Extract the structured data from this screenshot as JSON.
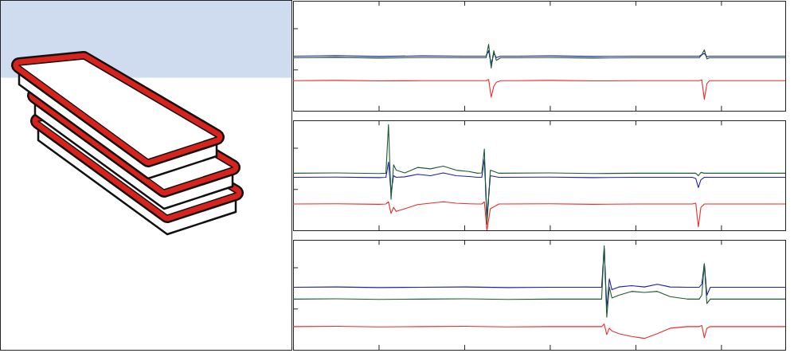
{
  "chart_data": [
    {
      "type": "line",
      "tick_labels": false,
      "grid": false,
      "xlim": [
        0,
        5.75
      ],
      "xticks": [
        1,
        2,
        3,
        4,
        5
      ],
      "ylim": [
        0,
        4
      ],
      "yticks": [
        1.5,
        3
      ],
      "x": [
        0,
        0.5,
        1,
        1.5,
        2,
        2.25,
        2.28,
        2.31,
        2.34,
        2.37,
        2.42,
        2.6,
        3,
        3.5,
        4,
        4.5,
        4.74,
        4.77,
        4.8,
        4.83,
        4.86,
        5.2,
        5.75
      ],
      "series": [
        {
          "color": "#1f1fa8",
          "values": [
            2.0,
            2.02,
            1.99,
            2.01,
            2.0,
            2.0,
            2.2,
            1.7,
            2.1,
            1.95,
            2.0,
            2.0,
            2.01,
            1.99,
            2.0,
            2.0,
            2.0,
            2.05,
            2.1,
            1.98,
            2.0,
            2.0,
            2.0
          ]
        },
        {
          "color": "#1e5a32",
          "values": [
            1.94,
            1.96,
            1.93,
            1.95,
            1.94,
            1.94,
            2.43,
            1.57,
            2.2,
            1.85,
            1.94,
            1.94,
            1.95,
            1.93,
            1.94,
            1.94,
            1.94,
            2.05,
            2.23,
            1.9,
            1.94,
            1.94,
            1.94
          ]
        },
        {
          "color": "#ee2a2a",
          "values": [
            1.11,
            1.12,
            1.1,
            1.11,
            1.11,
            1.11,
            1.15,
            0.51,
            0.9,
            1.05,
            1.11,
            1.11,
            1.12,
            1.1,
            1.11,
            1.11,
            1.11,
            1.14,
            0.43,
            1.0,
            1.11,
            1.11,
            1.11
          ]
        }
      ]
    },
    {
      "type": "line",
      "tick_labels": false,
      "grid": false,
      "xlim": [
        0,
        5.75
      ],
      "xticks": [
        1,
        2,
        3,
        4,
        5
      ],
      "ylim": [
        0,
        4
      ],
      "yticks": [
        1.5,
        3
      ],
      "x": [
        0,
        0.5,
        1,
        1.08,
        1.11,
        1.14,
        1.17,
        1.2,
        1.3,
        1.45,
        1.6,
        1.75,
        1.9,
        2.05,
        2.15,
        2.2,
        2.23,
        2.26,
        2.3,
        2.4,
        3,
        3.5,
        4,
        4.5,
        4.66,
        4.7,
        4.73,
        4.76,
        4.8,
        5.2,
        5.75
      ],
      "series": [
        {
          "color": "#1f1fa8",
          "values": [
            1.94,
            1.95,
            1.93,
            1.94,
            2.5,
            1.4,
            2.0,
            1.94,
            1.96,
            2.05,
            2.0,
            2.1,
            2.0,
            1.97,
            1.94,
            1.94,
            2.6,
            0.5,
            2.0,
            1.94,
            1.95,
            1.93,
            1.94,
            1.94,
            1.94,
            1.9,
            1.57,
            1.85,
            1.94,
            1.94,
            1.94
          ]
        },
        {
          "color": "#1e5a32",
          "values": [
            2.09,
            2.1,
            2.08,
            2.09,
            3.86,
            1.14,
            2.4,
            2.2,
            2.1,
            2.3,
            2.25,
            2.35,
            2.2,
            2.15,
            2.09,
            2.1,
            2.97,
            0.23,
            2.2,
            2.09,
            2.1,
            2.08,
            2.09,
            2.09,
            2.09,
            2.09,
            2.0,
            2.12,
            2.09,
            2.09,
            2.09
          ]
        },
        {
          "color": "#ee2a2a",
          "values": [
            0.97,
            0.98,
            0.96,
            0.97,
            1.05,
            0.63,
            0.85,
            0.7,
            0.8,
            0.95,
            1.0,
            1.05,
            1.0,
            0.98,
            0.97,
            0.97,
            1.05,
            0.0,
            0.8,
            0.97,
            0.98,
            0.96,
            0.97,
            0.97,
            0.97,
            1.0,
            0.14,
            0.85,
            0.97,
            0.97,
            0.97
          ]
        }
      ]
    },
    {
      "type": "line",
      "tick_labels": false,
      "grid": false,
      "xlim": [
        0,
        5.75
      ],
      "xticks": [
        1,
        2,
        3,
        4,
        5
      ],
      "ylim": [
        0,
        4
      ],
      "yticks": [
        1.5,
        3
      ],
      "x": [
        0,
        0.5,
        1,
        1.5,
        2,
        2.5,
        3,
        3.5,
        3.6,
        3.63,
        3.66,
        3.69,
        3.72,
        3.8,
        3.95,
        4.1,
        4.25,
        4.4,
        4.6,
        4.74,
        4.77,
        4.8,
        4.83,
        4.87,
        5.2,
        5.75
      ],
      "series": [
        {
          "color": "#1f1fa8",
          "values": [
            2.29,
            2.3,
            2.28,
            2.29,
            2.3,
            2.28,
            2.29,
            2.29,
            2.29,
            3.7,
            1.5,
            2.6,
            2.2,
            2.3,
            2.35,
            2.3,
            2.4,
            2.3,
            2.29,
            2.29,
            2.4,
            3.14,
            2.0,
            2.29,
            2.29,
            2.29
          ]
        },
        {
          "color": "#1e5a32",
          "values": [
            1.86,
            1.87,
            1.85,
            1.86,
            1.87,
            1.85,
            1.86,
            1.86,
            1.86,
            3.8,
            1.2,
            2.3,
            1.9,
            2.0,
            2.14,
            2.1,
            2.14,
            1.95,
            1.86,
            1.86,
            2.0,
            3.14,
            1.7,
            1.86,
            1.86,
            1.86
          ]
        },
        {
          "color": "#ee2a2a",
          "values": [
            0.86,
            0.87,
            0.85,
            0.86,
            0.87,
            0.85,
            0.86,
            0.86,
            0.86,
            0.95,
            0.57,
            0.8,
            0.7,
            0.6,
            0.5,
            0.43,
            0.6,
            0.8,
            0.86,
            0.86,
            0.9,
            0.45,
            0.8,
            0.86,
            0.86,
            0.86
          ]
        }
      ]
    }
  ]
}
